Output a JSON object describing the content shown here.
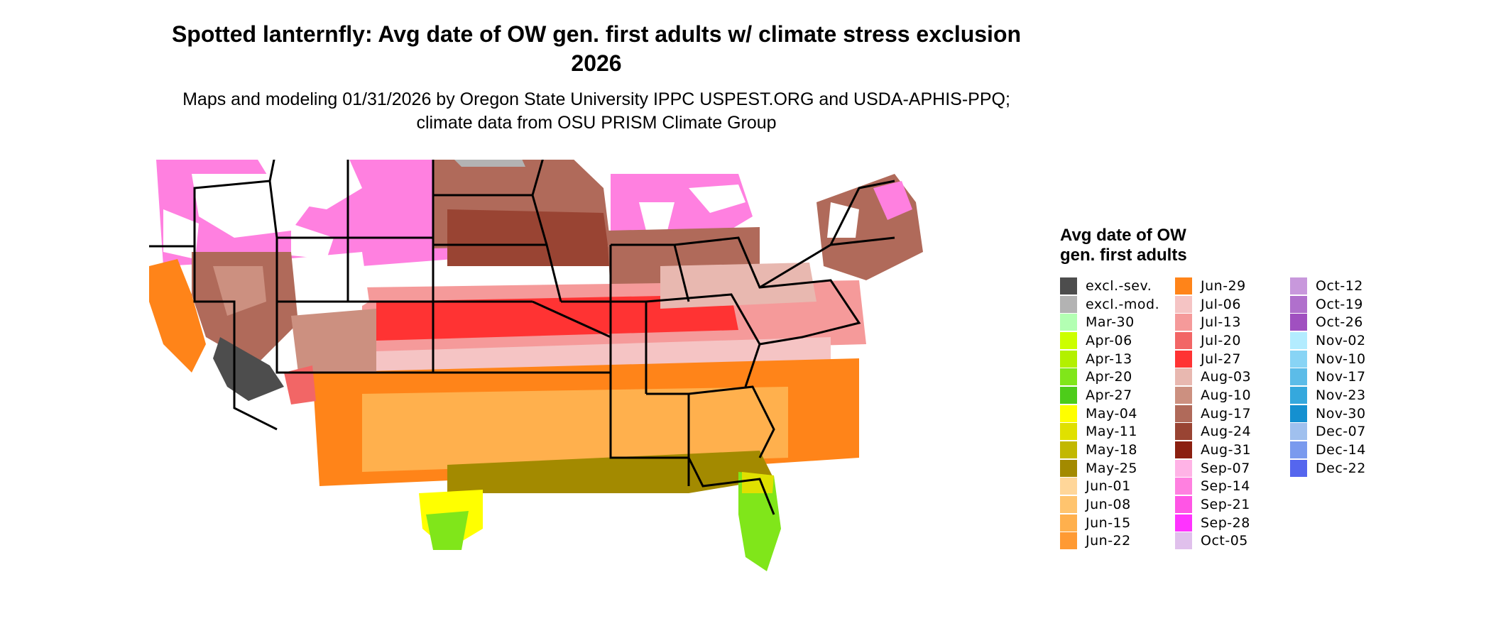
{
  "title": "Spotted lanternfly: Avg date of OW gen. first adults w/ climate stress exclusion 2026",
  "subtitle": "Maps and modeling 01/31/2026 by Oregon State University IPPC USPEST.ORG and USDA-APHIS-PPQ; climate data from OSU PRISM Climate Group",
  "legend": {
    "title": "Avg date of OW gen. first adults",
    "columns": [
      [
        {
          "label": "excl.-sev.",
          "color": "#4d4d4d"
        },
        {
          "label": "excl.-mod.",
          "color": "#b3b3b3"
        },
        {
          "label": "Mar-30",
          "color": "#b3ffb3"
        },
        {
          "label": "Apr-06",
          "color": "#ccff00"
        },
        {
          "label": "Apr-13",
          "color": "#b3f000"
        },
        {
          "label": "Apr-20",
          "color": "#80e61a"
        },
        {
          "label": "Apr-27",
          "color": "#4dcc1a"
        },
        {
          "label": "May-04",
          "color": "#ffff00"
        },
        {
          "label": "May-11",
          "color": "#e0e000"
        },
        {
          "label": "May-18",
          "color": "#c2b800"
        },
        {
          "label": "May-25",
          "color": "#a38a00"
        },
        {
          "label": "Jun-01",
          "color": "#ffd699"
        },
        {
          "label": "Jun-08",
          "color": "#ffc46e"
        },
        {
          "label": "Jun-15",
          "color": "#ffb04d"
        },
        {
          "label": "Jun-22",
          "color": "#ff9a33"
        }
      ],
      [
        {
          "label": "Jun-29",
          "color": "#ff8419"
        },
        {
          "label": "Jul-06",
          "color": "#f5c4c4"
        },
        {
          "label": "Jul-13",
          "color": "#f59a9a"
        },
        {
          "label": "Jul-20",
          "color": "#f26666"
        },
        {
          "label": "Jul-27",
          "color": "#ff3333"
        },
        {
          "label": "Aug-03",
          "color": "#e8b8b0"
        },
        {
          "label": "Aug-10",
          "color": "#cc9080"
        },
        {
          "label": "Aug-17",
          "color": "#b06a5a"
        },
        {
          "label": "Aug-24",
          "color": "#994433"
        },
        {
          "label": "Aug-31",
          "color": "#8b2010"
        },
        {
          "label": "Sep-07",
          "color": "#ffb3e6"
        },
        {
          "label": "Sep-14",
          "color": "#ff80e0"
        },
        {
          "label": "Sep-21",
          "color": "#ff55e5"
        },
        {
          "label": "Sep-28",
          "color": "#ff33ff"
        },
        {
          "label": "Oct-05",
          "color": "#e0c0ec"
        }
      ],
      [
        {
          "label": "Oct-12",
          "color": "#c898dc"
        },
        {
          "label": "Oct-19",
          "color": "#b070cc"
        },
        {
          "label": "Oct-26",
          "color": "#a050c0"
        },
        {
          "label": "Nov-02",
          "color": "#b3ecff"
        },
        {
          "label": "Nov-10",
          "color": "#88d4f5"
        },
        {
          "label": "Nov-17",
          "color": "#5cbce8"
        },
        {
          "label": "Nov-23",
          "color": "#35a8dd"
        },
        {
          "label": "Nov-30",
          "color": "#1590d0"
        },
        {
          "label": "Dec-07",
          "color": "#a0c0ee"
        },
        {
          "label": "Dec-14",
          "color": "#7a9aee"
        },
        {
          "label": "Dec-22",
          "color": "#5566ee"
        }
      ]
    ]
  }
}
